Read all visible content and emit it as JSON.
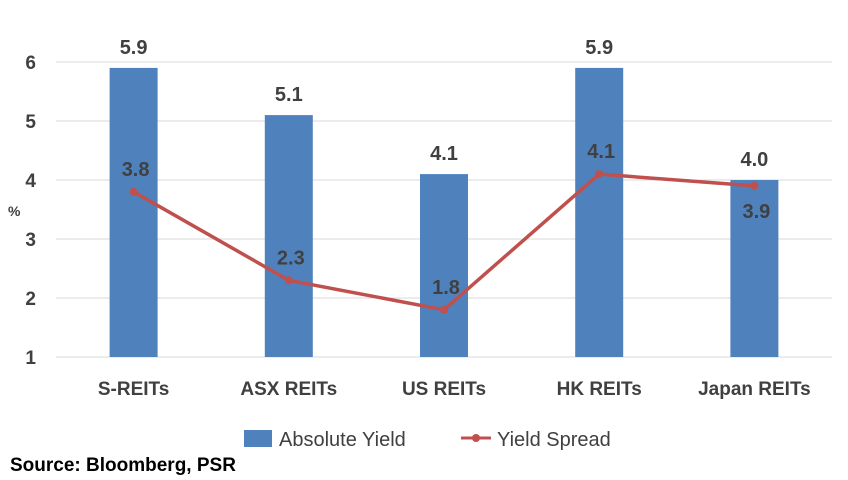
{
  "chart_data": {
    "type": "bar",
    "categories": [
      "S-REITs",
      "ASX REITs",
      "US REITs",
      "HK REITs",
      "Japan REITs"
    ],
    "series": [
      {
        "name": "Absolute Yield",
        "kind": "bar",
        "values": [
          5.9,
          5.1,
          4.1,
          5.9,
          4.0
        ],
        "color": "#4F81BD"
      },
      {
        "name": "Yield Spread",
        "kind": "line",
        "values": [
          3.8,
          2.3,
          1.8,
          4.1,
          3.9
        ],
        "color": "#C0504D"
      }
    ],
    "ylabel": "%",
    "xlabel": "",
    "ylim": [
      1,
      6
    ],
    "yticks": [
      1,
      2,
      3,
      4,
      5,
      6
    ],
    "grid": true,
    "legend": "bottom"
  },
  "source": "Source: Bloomberg, PSR"
}
